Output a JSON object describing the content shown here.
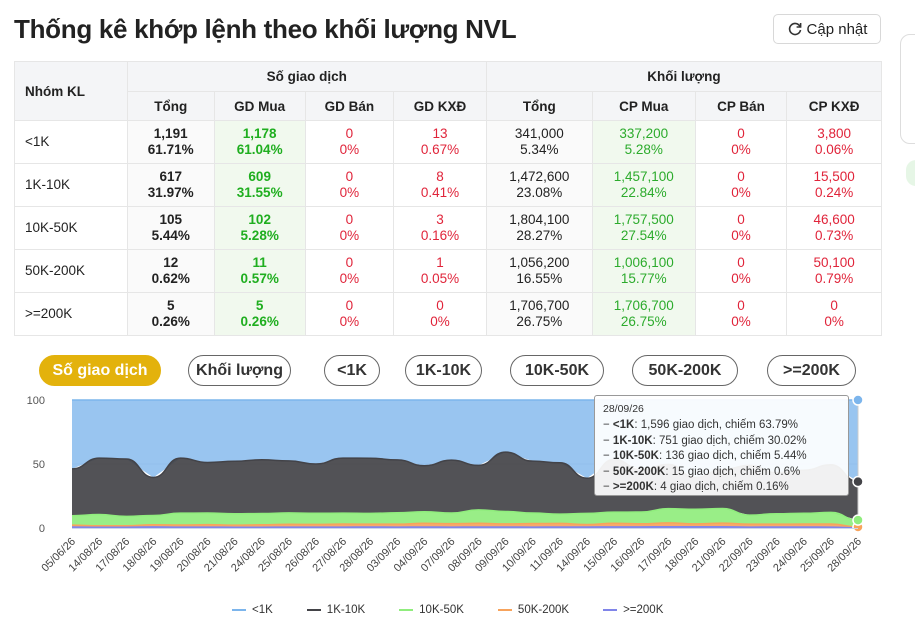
{
  "page": {
    "title": "Thống kê khớp lệnh theo khối lượng NVL",
    "refresh_label": "Cập nhật"
  },
  "table": {
    "group_header": "Nhóm KL",
    "trades_header": "Số giao dịch",
    "volume_header": "Khối lượng",
    "sub_headers": [
      "Tổng",
      "GD Mua",
      "GD Bán",
      "GD KXĐ",
      "Tổng",
      "CP Mua",
      "CP Bán",
      "CP KXĐ"
    ],
    "rows": [
      {
        "group": "<1K",
        "cells": [
          [
            "1,191",
            "61.71%"
          ],
          [
            "1,178",
            "61.04%"
          ],
          [
            "0",
            "0%"
          ],
          [
            "13",
            "0.67%"
          ],
          [
            "341,000",
            "5.34%"
          ],
          [
            "337,200",
            "5.28%"
          ],
          [
            "0",
            "0%"
          ],
          [
            "3,800",
            "0.06%"
          ]
        ]
      },
      {
        "group": "1K-10K",
        "cells": [
          [
            "617",
            "31.97%"
          ],
          [
            "609",
            "31.55%"
          ],
          [
            "0",
            "0%"
          ],
          [
            "8",
            "0.41%"
          ],
          [
            "1,472,600",
            "23.08%"
          ],
          [
            "1,457,100",
            "22.84%"
          ],
          [
            "0",
            "0%"
          ],
          [
            "15,500",
            "0.24%"
          ]
        ]
      },
      {
        "group": "10K-50K",
        "cells": [
          [
            "105",
            "5.44%"
          ],
          [
            "102",
            "5.28%"
          ],
          [
            "0",
            "0%"
          ],
          [
            "3",
            "0.16%"
          ],
          [
            "1,804,100",
            "28.27%"
          ],
          [
            "1,757,500",
            "27.54%"
          ],
          [
            "0",
            "0%"
          ],
          [
            "46,600",
            "0.73%"
          ]
        ]
      },
      {
        "group": "50K-200K",
        "cells": [
          [
            "12",
            "0.62%"
          ],
          [
            "11",
            "0.57%"
          ],
          [
            "0",
            "0%"
          ],
          [
            "1",
            "0.05%"
          ],
          [
            "1,056,200",
            "16.55%"
          ],
          [
            "1,006,100",
            "15.77%"
          ],
          [
            "0",
            "0%"
          ],
          [
            "50,100",
            "0.79%"
          ]
        ]
      },
      {
        "group": ">=200K",
        "cells": [
          [
            "5",
            "0.26%"
          ],
          [
            "5",
            "0.26%"
          ],
          [
            "0",
            "0%"
          ],
          [
            "0",
            "0%"
          ],
          [
            "1,706,700",
            "26.75%"
          ],
          [
            "1,706,700",
            "26.75%"
          ],
          [
            "0",
            "0%"
          ],
          [
            "0",
            "0%"
          ]
        ]
      }
    ]
  },
  "tabs": [
    {
      "label": "Số giao dịch",
      "active": true
    },
    {
      "label": "Khối lượng",
      "active": false
    },
    {
      "label": "<1K",
      "active": false
    },
    {
      "label": "1K-10K",
      "active": false
    },
    {
      "label": "10K-50K",
      "active": false
    },
    {
      "label": "50K-200K",
      "active": false
    },
    {
      "label": ">=200K",
      "active": false
    }
  ],
  "tooltip": {
    "date": "28/09/26",
    "lines": [
      {
        "name": "<1K",
        "text": ": 1,596 giao dịch, chiếm 63.79%"
      },
      {
        "name": "1K-10K",
        "text": ": 751 giao dịch, chiếm 30.02%"
      },
      {
        "name": "10K-50K",
        "text": ": 136 giao dịch, chiếm 5.44%"
      },
      {
        "name": "50K-200K",
        "text": ": 15 giao dịch, chiếm 0.6%"
      },
      {
        "name": ">=200K",
        "text": ": 4 giao dịch, chiếm 0.16%"
      }
    ]
  },
  "chart_data": {
    "type": "area",
    "stacked": true,
    "ylim": [
      0,
      100
    ],
    "yticks": [
      0,
      50,
      100
    ],
    "x_labels": [
      "05/06/26",
      "14/08/26",
      "17/08/26",
      "18/08/26",
      "19/08/26",
      "20/08/26",
      "21/08/26",
      "24/08/26",
      "25/08/26",
      "26/08/26",
      "27/08/26",
      "28/08/26",
      "03/09/26",
      "04/09/26",
      "07/09/26",
      "08/09/26",
      "09/09/26",
      "10/09/26",
      "11/09/26",
      "14/09/26",
      "15/09/26",
      "16/09/26",
      "17/09/26",
      "18/09/26",
      "21/09/26",
      "22/09/26",
      "23/09/26",
      "24/09/26",
      "25/09/26",
      "28/09/26"
    ],
    "series": [
      {
        "name": "<1K",
        "color": "#7cb5ec",
        "values": [
          53.8,
          45.4,
          46.1,
          60.5,
          45.4,
          48.8,
          47.9,
          46.7,
          47.6,
          50.0,
          45.4,
          45.5,
          46.8,
          51.4,
          47.0,
          51.1,
          40.7,
          47.8,
          49.0,
          61.1,
          46.4,
          54.5,
          50.3,
          60.5,
          54.4,
          51.1,
          56.8,
          54.9,
          50.6,
          63.79
        ]
      },
      {
        "name": "1K-10K",
        "color": "#434348",
        "values": [
          36.6,
          44.1,
          44.8,
          29.7,
          43.0,
          39.5,
          41.0,
          42.0,
          40.6,
          38.5,
          43.0,
          43.1,
          41.3,
          35.9,
          41.3,
          34.7,
          46.4,
          40.5,
          40.2,
          27.5,
          41.2,
          33.0,
          34.6,
          24.9,
          30.4,
          38.8,
          32.1,
          33.6,
          37.2,
          30.02
        ]
      },
      {
        "name": "10K-50K",
        "color": "#90ed7d",
        "values": [
          7.4,
          8.7,
          7.3,
          7.3,
          9.3,
          9.1,
          8.9,
          8.8,
          8.9,
          8.7,
          8.5,
          8.4,
          8.9,
          9.0,
          8.3,
          10.5,
          9.7,
          8.2,
          7.2,
          8.7,
          8.7,
          9.2,
          11.1,
          11.4,
          11.4,
          7.1,
          8.1,
          8.4,
          9.1,
          5.44
        ]
      },
      {
        "name": "50K-200K",
        "color": "#f7a35c",
        "values": [
          1.4,
          1.2,
          1.2,
          1.6,
          1.6,
          1.9,
          1.6,
          1.9,
          2.2,
          2.1,
          2.4,
          2.2,
          2.3,
          2.9,
          2.7,
          2.9,
          2.4,
          2.8,
          2.8,
          1.9,
          2.8,
          2.4,
          3.0,
          2.2,
          2.8,
          2.3,
          2.2,
          2.3,
          2.4,
          0.6
        ]
      },
      {
        "name": ">=200K",
        "color": "#8085e9",
        "values": [
          0.8,
          0.6,
          0.6,
          0.9,
          0.7,
          0.7,
          0.6,
          0.6,
          0.7,
          0.7,
          0.7,
          0.8,
          0.7,
          0.8,
          0.7,
          0.8,
          0.8,
          0.7,
          0.8,
          0.8,
          0.9,
          0.9,
          1.0,
          1.0,
          1.0,
          0.7,
          0.8,
          0.8,
          0.7,
          0.16
        ]
      }
    ]
  }
}
